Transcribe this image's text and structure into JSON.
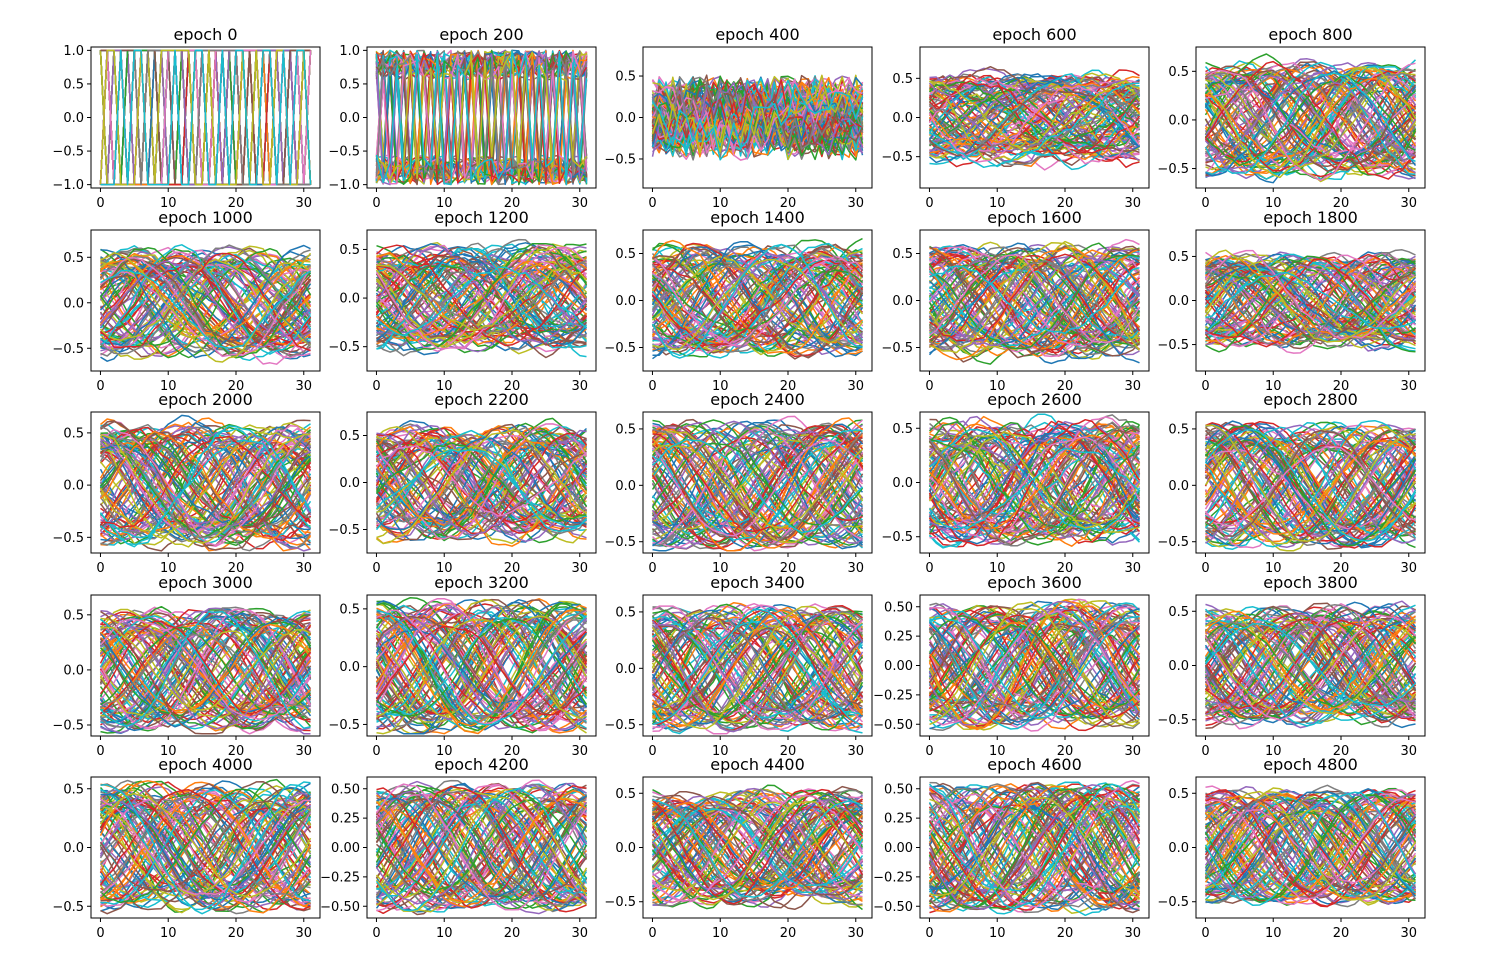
{
  "figure": {
    "description_free": true,
    "rows": 5,
    "cols": 5,
    "palette": [
      "#1f77b4",
      "#ff7f0e",
      "#2ca02c",
      "#d62728",
      "#9467bd",
      "#8c564b",
      "#e377c2",
      "#7f7f7f",
      "#bcbd22",
      "#17becf"
    ]
  },
  "chart_data": [
    {
      "type": "line",
      "title": "epoch 0",
      "xlim": [
        0,
        31
      ],
      "xticks": [
        0,
        10,
        20,
        30
      ],
      "xtick_labels": [
        "0",
        "10",
        "20",
        "30"
      ],
      "ylim": [
        -1.05,
        1.05
      ],
      "yticks": [
        1.0,
        0.5,
        0.0,
        -0.5,
        -1.0
      ],
      "ytick_labels": [
        "1.0",
        "0.5",
        "0.0",
        "−0.5",
        "−1.0"
      ],
      "pattern": "random_binary",
      "amplitude": 1.0,
      "n_series": 100
    },
    {
      "type": "line",
      "title": "epoch 200",
      "xlim": [
        0,
        31
      ],
      "xticks": [
        0,
        10,
        20,
        30
      ],
      "xtick_labels": [
        "0",
        "10",
        "20",
        "30"
      ],
      "ylim": [
        -1.05,
        1.05
      ],
      "yticks": [
        1.0,
        0.5,
        0.0,
        -0.5,
        -1.0
      ],
      "ytick_labels": [
        "1.0",
        "0.5",
        "0.0",
        "−0.5",
        "−1.0"
      ],
      "pattern": "noisy_binary",
      "amplitude": 1.0,
      "n_series": 100
    },
    {
      "type": "line",
      "title": "epoch 400",
      "xlim": [
        0,
        31
      ],
      "xticks": [
        0,
        10,
        20,
        30
      ],
      "xtick_labels": [
        "0",
        "10",
        "20",
        "30"
      ],
      "ylim": [
        -0.85,
        0.85
      ],
      "yticks": [
        0.5,
        0.0,
        -0.5
      ],
      "ytick_labels": [
        "0.5",
        "0.0",
        "−0.5"
      ],
      "pattern": "noisy",
      "amplitude": 0.4,
      "n_series": 100
    },
    {
      "type": "line",
      "title": "epoch 600",
      "xlim": [
        0,
        31
      ],
      "xticks": [
        0,
        10,
        20,
        30
      ],
      "xtick_labels": [
        "0",
        "10",
        "20",
        "30"
      ],
      "ylim": [
        -0.9,
        0.9
      ],
      "yticks": [
        0.5,
        0.0,
        -0.5
      ],
      "ytick_labels": [
        "0.5",
        "0.0",
        "−0.5"
      ],
      "pattern": "smoothish",
      "amplitude": 0.5,
      "n_series": 100
    },
    {
      "type": "line",
      "title": "epoch 800",
      "xlim": [
        0,
        31
      ],
      "xticks": [
        0,
        10,
        20,
        30
      ],
      "xtick_labels": [
        "0",
        "10",
        "20",
        "30"
      ],
      "ylim": [
        -0.7,
        0.75
      ],
      "yticks": [
        0.5,
        0.0,
        -0.5
      ],
      "ytick_labels": [
        "0.5",
        "0.0",
        "−0.5"
      ],
      "pattern": "sine",
      "amplitude": 0.55,
      "n_series": 100
    },
    {
      "type": "line",
      "title": "epoch 1000",
      "xlim": [
        0,
        31
      ],
      "xticks": [
        0,
        10,
        20,
        30
      ],
      "xtick_labels": [
        "0",
        "10",
        "20",
        "30"
      ],
      "ylim": [
        -0.75,
        0.8
      ],
      "yticks": [
        0.5,
        0.0,
        -0.5
      ],
      "ytick_labels": [
        "0.5",
        "0.0",
        "−0.5"
      ],
      "pattern": "sine",
      "amplitude": 0.55,
      "n_series": 100
    },
    {
      "type": "line",
      "title": "epoch 1200",
      "xlim": [
        0,
        31
      ],
      "xticks": [
        0,
        10,
        20,
        30
      ],
      "xtick_labels": [
        "0",
        "10",
        "20",
        "30"
      ],
      "ylim": [
        -0.75,
        0.7
      ],
      "yticks": [
        0.5,
        0.0,
        -0.5
      ],
      "ytick_labels": [
        "0.5",
        "0.0",
        "−0.5"
      ],
      "pattern": "sine",
      "amplitude": 0.5,
      "n_series": 100
    },
    {
      "type": "line",
      "title": "epoch 1400",
      "xlim": [
        0,
        31
      ],
      "xticks": [
        0,
        10,
        20,
        30
      ],
      "xtick_labels": [
        "0",
        "10",
        "20",
        "30"
      ],
      "ylim": [
        -0.75,
        0.75
      ],
      "yticks": [
        0.5,
        0.0,
        -0.5
      ],
      "ytick_labels": [
        "0.5",
        "0.0",
        "−0.5"
      ],
      "pattern": "sine",
      "amplitude": 0.55,
      "n_series": 100
    },
    {
      "type": "line",
      "title": "epoch 1600",
      "xlim": [
        0,
        31
      ],
      "xticks": [
        0,
        10,
        20,
        30
      ],
      "xtick_labels": [
        "0",
        "10",
        "20",
        "30"
      ],
      "ylim": [
        -0.75,
        0.75
      ],
      "yticks": [
        0.5,
        0.0,
        -0.5
      ],
      "ytick_labels": [
        "0.5",
        "0.0",
        "−0.5"
      ],
      "pattern": "sine",
      "amplitude": 0.55,
      "n_series": 100
    },
    {
      "type": "line",
      "title": "epoch 1800",
      "xlim": [
        0,
        31
      ],
      "xticks": [
        0,
        10,
        20,
        30
      ],
      "xtick_labels": [
        "0",
        "10",
        "20",
        "30"
      ],
      "ylim": [
        -0.8,
        0.8
      ],
      "yticks": [
        0.5,
        0.0,
        -0.5
      ],
      "ytick_labels": [
        "0.5",
        "0.0",
        "−0.5"
      ],
      "pattern": "sine",
      "amplitude": 0.5,
      "n_series": 100
    },
    {
      "type": "line",
      "title": "epoch 2000",
      "xlim": [
        0,
        31
      ],
      "xticks": [
        0,
        10,
        20,
        30
      ],
      "xtick_labels": [
        "0",
        "10",
        "20",
        "30"
      ],
      "ylim": [
        -0.65,
        0.7
      ],
      "yticks": [
        0.5,
        0.0,
        -0.5
      ],
      "ytick_labels": [
        "0.5",
        "0.0",
        "−0.5"
      ],
      "pattern": "sine",
      "amplitude": 0.55,
      "n_series": 100
    },
    {
      "type": "line",
      "title": "epoch 2200",
      "xlim": [
        0,
        31
      ],
      "xticks": [
        0,
        10,
        20,
        30
      ],
      "xtick_labels": [
        "0",
        "10",
        "20",
        "30"
      ],
      "ylim": [
        -0.75,
        0.75
      ],
      "yticks": [
        0.5,
        0.0,
        -0.5
      ],
      "ytick_labels": [
        "0.5",
        "0.0",
        "−0.5"
      ],
      "pattern": "sine",
      "amplitude": 0.55,
      "n_series": 100
    },
    {
      "type": "line",
      "title": "epoch 2400",
      "xlim": [
        0,
        31
      ],
      "xticks": [
        0,
        10,
        20,
        30
      ],
      "xtick_labels": [
        "0",
        "10",
        "20",
        "30"
      ],
      "ylim": [
        -0.6,
        0.65
      ],
      "yticks": [
        0.5,
        0.0,
        -0.5
      ],
      "ytick_labels": [
        "0.5",
        "0.0",
        "−0.5"
      ],
      "pattern": "clean_sine",
      "amplitude": 0.52,
      "n_series": 100
    },
    {
      "type": "line",
      "title": "epoch 2600",
      "xlim": [
        0,
        31
      ],
      "xticks": [
        0,
        10,
        20,
        30
      ],
      "xtick_labels": [
        "0",
        "10",
        "20",
        "30"
      ],
      "ylim": [
        -0.65,
        0.65
      ],
      "yticks": [
        0.5,
        0.0,
        -0.5
      ],
      "ytick_labels": [
        "0.5",
        "0.0",
        "−0.5"
      ],
      "pattern": "sine",
      "amplitude": 0.52,
      "n_series": 100
    },
    {
      "type": "line",
      "title": "epoch 2800",
      "xlim": [
        0,
        31
      ],
      "xticks": [
        0,
        10,
        20,
        30
      ],
      "xtick_labels": [
        "0",
        "10",
        "20",
        "30"
      ],
      "ylim": [
        -0.6,
        0.65
      ],
      "yticks": [
        0.5,
        0.0,
        -0.5
      ],
      "ytick_labels": [
        "0.5",
        "0.0",
        "−0.5"
      ],
      "pattern": "clean_sine",
      "amplitude": 0.52,
      "n_series": 100
    },
    {
      "type": "line",
      "title": "epoch 3000",
      "xlim": [
        0,
        31
      ],
      "xticks": [
        0,
        10,
        20,
        30
      ],
      "xtick_labels": [
        "0",
        "10",
        "20",
        "30"
      ],
      "ylim": [
        -0.6,
        0.68
      ],
      "yticks": [
        0.5,
        0.0,
        -0.5
      ],
      "ytick_labels": [
        "0.5",
        "0.0",
        "−0.5"
      ],
      "pattern": "clean_sine",
      "amplitude": 0.52,
      "n_series": 100
    },
    {
      "type": "line",
      "title": "epoch 3200",
      "xlim": [
        0,
        31
      ],
      "xticks": [
        0,
        10,
        20,
        30
      ],
      "xtick_labels": [
        "0",
        "10",
        "20",
        "30"
      ],
      "ylim": [
        -0.6,
        0.62
      ],
      "yticks": [
        0.5,
        0.0,
        -0.5
      ],
      "ytick_labels": [
        "0.5",
        "0.0",
        "−0.5"
      ],
      "pattern": "clean_sine",
      "amplitude": 0.52,
      "n_series": 100
    },
    {
      "type": "line",
      "title": "epoch 3400",
      "xlim": [
        0,
        31
      ],
      "xticks": [
        0,
        10,
        20,
        30
      ],
      "xtick_labels": [
        "0",
        "10",
        "20",
        "30"
      ],
      "ylim": [
        -0.6,
        0.65
      ],
      "yticks": [
        0.5,
        0.0,
        -0.5
      ],
      "ytick_labels": [
        "0.5",
        "0.0",
        "−0.5"
      ],
      "pattern": "clean_sine",
      "amplitude": 0.52,
      "n_series": 100
    },
    {
      "type": "line",
      "title": "epoch 3600",
      "xlim": [
        0,
        31
      ],
      "xticks": [
        0,
        10,
        20,
        30
      ],
      "xtick_labels": [
        "0",
        "10",
        "20",
        "30"
      ],
      "ylim": [
        -0.6,
        0.6
      ],
      "yticks": [
        0.5,
        0.25,
        0.0,
        -0.25,
        -0.5
      ],
      "ytick_labels": [
        "0.50",
        "0.25",
        "0.00",
        "−0.25",
        "−0.50"
      ],
      "pattern": "clean_sine",
      "amplitude": 0.5,
      "n_series": 100
    },
    {
      "type": "line",
      "title": "epoch 3800",
      "xlim": [
        0,
        31
      ],
      "xticks": [
        0,
        10,
        20,
        30
      ],
      "xtick_labels": [
        "0",
        "10",
        "20",
        "30"
      ],
      "ylim": [
        -0.65,
        0.65
      ],
      "yticks": [
        0.5,
        0.0,
        -0.5
      ],
      "ytick_labels": [
        "0.5",
        "0.0",
        "−0.5"
      ],
      "pattern": "clean_sine",
      "amplitude": 0.52,
      "n_series": 100
    },
    {
      "type": "line",
      "title": "epoch 4000",
      "xlim": [
        0,
        31
      ],
      "xticks": [
        0,
        10,
        20,
        30
      ],
      "xtick_labels": [
        "0",
        "10",
        "20",
        "30"
      ],
      "ylim": [
        -0.6,
        0.6
      ],
      "yticks": [
        0.5,
        0.0,
        -0.5
      ],
      "ytick_labels": [
        "0.5",
        "0.0",
        "−0.5"
      ],
      "pattern": "clean_sine",
      "amplitude": 0.5,
      "n_series": 100
    },
    {
      "type": "line",
      "title": "epoch 4200",
      "xlim": [
        0,
        31
      ],
      "xticks": [
        0,
        10,
        20,
        30
      ],
      "xtick_labels": [
        "0",
        "10",
        "20",
        "30"
      ],
      "ylim": [
        -0.6,
        0.6
      ],
      "yticks": [
        0.5,
        0.25,
        0.0,
        -0.25,
        -0.5
      ],
      "ytick_labels": [
        "0.50",
        "0.25",
        "0.00",
        "−0.25",
        "−0.50"
      ],
      "pattern": "clean_sine",
      "amplitude": 0.5,
      "n_series": 100
    },
    {
      "type": "line",
      "title": "epoch 4400",
      "xlim": [
        0,
        31
      ],
      "xticks": [
        0,
        10,
        20,
        30
      ],
      "xtick_labels": [
        "0",
        "10",
        "20",
        "30"
      ],
      "ylim": [
        -0.65,
        0.65
      ],
      "yticks": [
        0.5,
        0.0,
        -0.5
      ],
      "ytick_labels": [
        "0.5",
        "0.0",
        "−0.5"
      ],
      "pattern": "clean_sine",
      "amplitude": 0.5,
      "n_series": 100
    },
    {
      "type": "line",
      "title": "epoch 4600",
      "xlim": [
        0,
        31
      ],
      "xticks": [
        0,
        10,
        20,
        30
      ],
      "xtick_labels": [
        "0",
        "10",
        "20",
        "30"
      ],
      "ylim": [
        -0.6,
        0.6
      ],
      "yticks": [
        0.5,
        0.25,
        0.0,
        -0.25,
        -0.5
      ],
      "ytick_labels": [
        "0.50",
        "0.25",
        "0.00",
        "−0.25",
        "−0.50"
      ],
      "pattern": "clean_sine",
      "amplitude": 0.5,
      "n_series": 100
    },
    {
      "type": "line",
      "title": "epoch 4800",
      "xlim": [
        0,
        31
      ],
      "xticks": [
        0,
        10,
        20,
        30
      ],
      "xtick_labels": [
        "0",
        "10",
        "20",
        "30"
      ],
      "ylim": [
        -0.65,
        0.65
      ],
      "yticks": [
        0.5,
        0.0,
        -0.5
      ],
      "ytick_labels": [
        "0.5",
        "0.0",
        "−0.5"
      ],
      "pattern": "clean_sine",
      "amplitude": 0.5,
      "n_series": 100
    }
  ]
}
